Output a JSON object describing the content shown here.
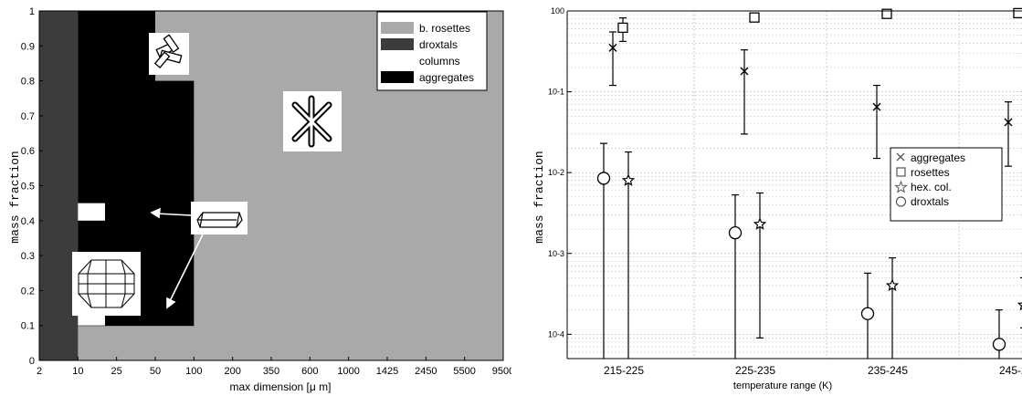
{
  "chart_data": [
    {
      "type": "heatmap",
      "ylabel": "mass fraction",
      "xlabel": "max dimension [μ m]",
      "xticks": [
        "2",
        "10",
        "25",
        "50",
        "100",
        "200",
        "350",
        "600",
        "1000",
        "1425",
        "2450",
        "5500",
        "9500"
      ],
      "yticks": [
        "0",
        "0.1",
        "0.2",
        "0.3",
        "0.4",
        "0.5",
        "0.6",
        "0.7",
        "0.8",
        "0.9",
        "1"
      ],
      "legend": [
        "b. rosettes",
        "droxtals",
        "columns",
        "aggregates"
      ],
      "legend_position": "top-right",
      "colors": {
        "b. rosettes": "#a9a9a9",
        "droxtals": "#3c3c3c",
        "columns": "#ffffff",
        "aggregates": "#000000"
      },
      "droxtals_upper_x": [
        1,
        1,
        1,
        1,
        1,
        1,
        1,
        1,
        1,
        1,
        1,
        1
      ],
      "aggregates_upper_x": [
        1,
        4,
        4,
        4,
        4,
        4,
        4,
        4,
        3,
        3,
        3,
        2
      ],
      "columns_cells": [
        {
          "x_bin": 1,
          "y": 0.1
        },
        {
          "x_bin": 1,
          "y": 0.4
        }
      ],
      "note": "cumulative mass fraction by max dimension bin"
    },
    {
      "type": "scatter",
      "ylabel": "mass fraction",
      "xlabel": "temperature range (K)",
      "categories": [
        "215-225",
        "225-235",
        "235-245",
        "245-255"
      ],
      "yscale": "log",
      "ylim": [
        5e-05,
        1
      ],
      "yticks": [
        "10-4",
        "10-3",
        "10-2",
        "10-1",
        "100"
      ],
      "grid": true,
      "legend_position": "center-right",
      "series": [
        {
          "name": "aggregates",
          "marker": "x",
          "values": [
            0.35,
            0.18,
            0.065,
            0.042
          ],
          "err_low": [
            0.12,
            0.03,
            0.015,
            0.012
          ],
          "err_high": [
            0.55,
            0.33,
            0.12,
            0.075
          ]
        },
        {
          "name": "rosettes",
          "marker": "square",
          "values": [
            0.62,
            0.83,
            0.92,
            0.94
          ],
          "err_low": [
            0.42,
            0.74,
            0.88,
            0.92
          ],
          "err_high": [
            0.82,
            0.9,
            0.95,
            0.96
          ]
        },
        {
          "name": "hex. col.",
          "marker": "star",
          "values": [
            0.008,
            0.0023,
            0.0004,
            0.00023
          ],
          "err_low": [
            5e-05,
            9e-05,
            5e-05,
            0.00012
          ],
          "err_high": [
            0.018,
            0.0056,
            0.00088,
            0.0005
          ]
        },
        {
          "name": "droxtals",
          "marker": "circle",
          "values": [
            0.0085,
            0.0018,
            0.00018,
            7.5e-05
          ],
          "err_low": [
            5e-05,
            7.5e-06,
            5e-05,
            5e-05
          ],
          "err_high": [
            0.023,
            0.0053,
            0.00057,
            0.0002
          ]
        }
      ]
    }
  ]
}
